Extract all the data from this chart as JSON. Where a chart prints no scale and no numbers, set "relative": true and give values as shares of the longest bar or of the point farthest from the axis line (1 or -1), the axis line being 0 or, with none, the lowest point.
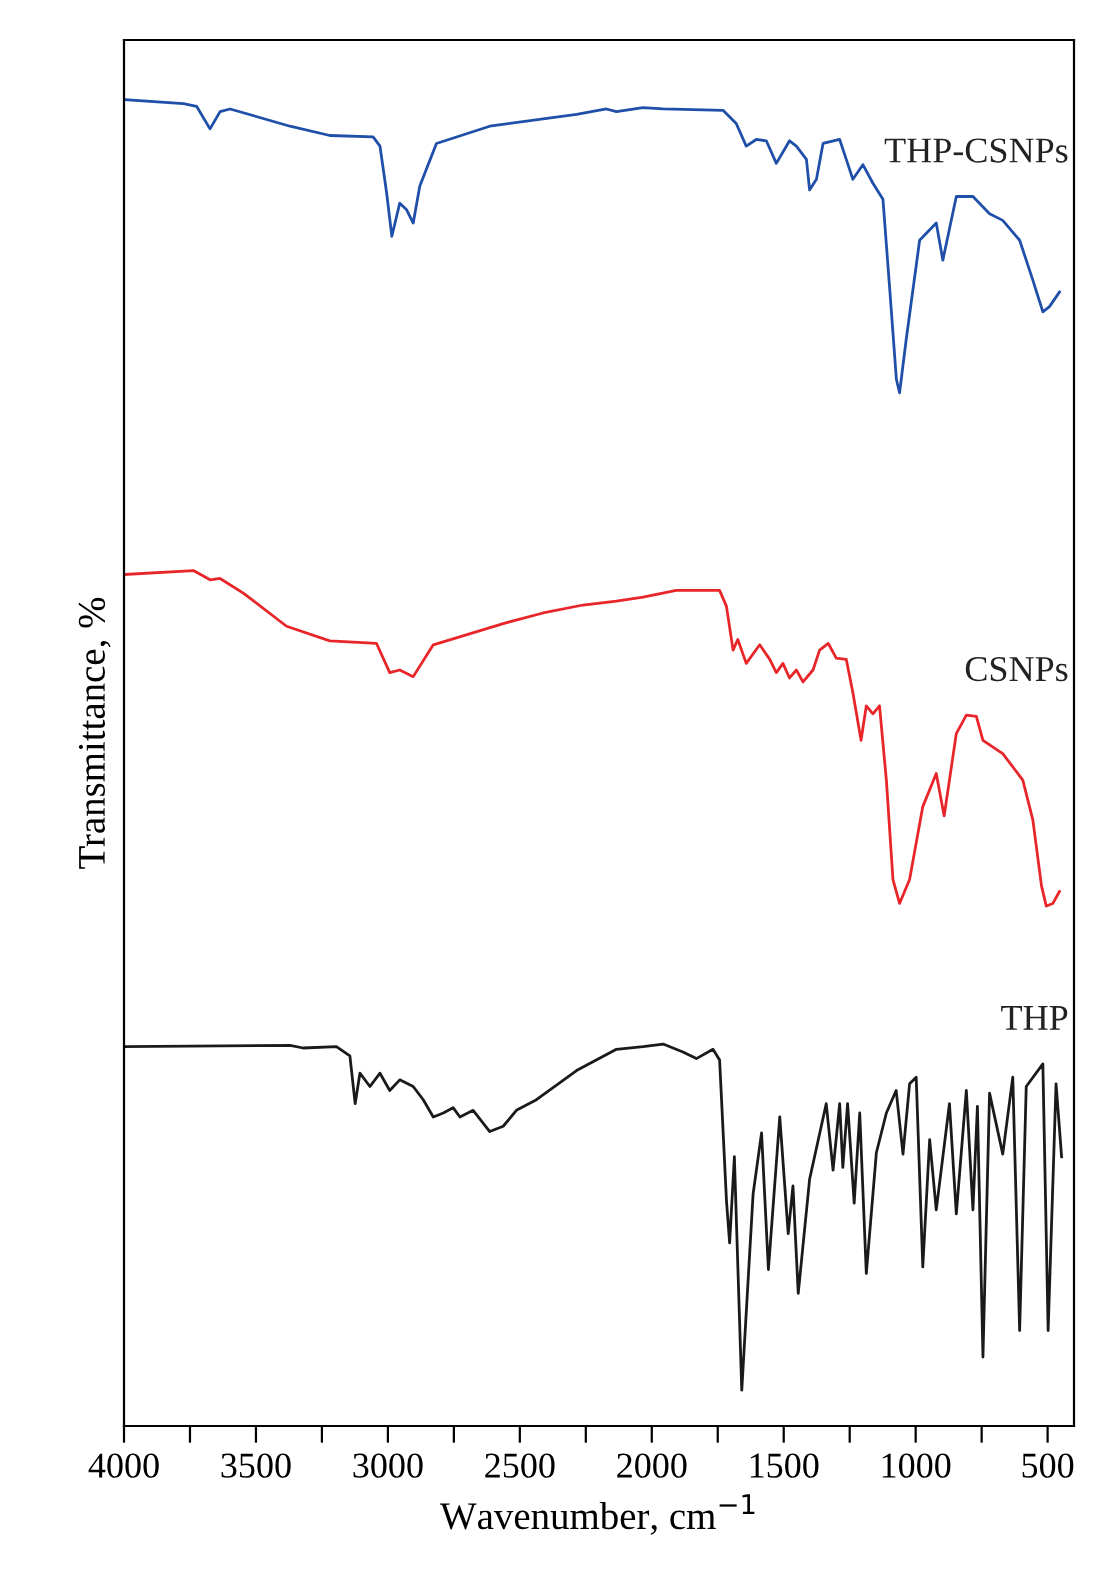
{
  "chart_data": {
    "type": "line",
    "relative": true,
    "xlabel": "Wavenumber, cm$^{−1}$",
    "ylabel": "Transmittance, %",
    "xlim": [
      4000,
      400
    ],
    "xticks": [
      4000,
      {
        "value": 3750,
        "label": null
      },
      3500,
      {
        "value": 3250,
        "label": null
      },
      3000,
      {
        "value": 2750,
        "label": null
      },
      2500,
      {
        "value": 2250,
        "label": null
      },
      2000,
      {
        "value": 1750,
        "label": null
      },
      1500,
      {
        "value": 1250,
        "label": null
      },
      1000,
      {
        "value": 750,
        "label": null
      },
      500
    ],
    "grid": false,
    "legend": false,
    "marker": "none",
    "line_style": "solid",
    "series": [
      {
        "name": "THP-CSNPs",
        "color": "#1f4fa8",
        "x": [
          3997,
          3775,
          3725,
          3674,
          3636,
          3598,
          3371,
          3220,
          3056,
          3030,
          3005,
          2985,
          2955,
          2929,
          2904,
          2879,
          2816,
          2614,
          2285,
          2172,
          2134,
          2033,
          1957,
          1730,
          1680,
          1642,
          1604,
          1566,
          1528,
          1478,
          1452,
          1414,
          1402,
          1376,
          1351,
          1288,
          1263,
          1238,
          1200,
          1162,
          1124,
          1099,
          1073,
          1061,
          1036,
          985,
          922,
          897,
          846,
          783,
          720,
          670,
          606,
          556,
          518,
          493,
          455
        ],
        "values": [
          1,
          0.997,
          0.995,
          0.978,
          0.991,
          0.993,
          0.98,
          0.973,
          0.972,
          0.965,
          0.93,
          0.897,
          0.922,
          0.917,
          0.907,
          0.935,
          0.967,
          0.98,
          0.989,
          0.993,
          0.991,
          0.994,
          0.993,
          0.992,
          0.982,
          0.965,
          0.97,
          0.969,
          0.952,
          0.969,
          0.965,
          0.955,
          0.932,
          0.94,
          0.967,
          0.97,
          0.955,
          0.94,
          0.951,
          0.937,
          0.925,
          0.859,
          0.789,
          0.779,
          0.819,
          0.894,
          0.907,
          0.879,
          0.927,
          0.927,
          0.914,
          0.909,
          0.894,
          0.864,
          0.84,
          0.844,
          0.855
        ]
      },
      {
        "name": "CSNPs",
        "color": "#e8262a",
        "x": [
          3997,
          3737,
          3674,
          3636,
          3548,
          3384,
          3220,
          3043,
          2993,
          2955,
          2904,
          2828,
          2563,
          2412,
          2260,
          2134,
          2033,
          1907,
          1743,
          1717,
          1692,
          1674,
          1642,
          1591,
          1553,
          1528,
          1503,
          1478,
          1452,
          1427,
          1389,
          1364,
          1331,
          1301,
          1263,
          1238,
          1207,
          1187,
          1162,
          1137,
          1111,
          1086,
          1061,
          1023,
          973,
          922,
          892,
          846,
          808,
          770,
          745,
          670,
          594,
          556,
          523,
          505,
          480,
          455
        ],
        "values": [
          0.642,
          0.645,
          0.638,
          0.639,
          0.628,
          0.603,
          0.592,
          0.59,
          0.568,
          0.57,
          0.565,
          0.589,
          0.605,
          0.613,
          0.619,
          0.622,
          0.625,
          0.63,
          0.63,
          0.618,
          0.585,
          0.593,
          0.575,
          0.589,
          0.578,
          0.568,
          0.575,
          0.564,
          0.57,
          0.561,
          0.57,
          0.585,
          0.59,
          0.579,
          0.578,
          0.553,
          0.517,
          0.543,
          0.537,
          0.543,
          0.487,
          0.412,
          0.394,
          0.412,
          0.467,
          0.492,
          0.46,
          0.522,
          0.536,
          0.535,
          0.517,
          0.507,
          0.487,
          0.457,
          0.407,
          0.392,
          0.394,
          0.403
        ]
      },
      {
        "name": "THP",
        "color": "#1a1a1a",
        "x": [
          3997,
          3371,
          3321,
          3195,
          3144,
          3124,
          3106,
          3068,
          3030,
          2993,
          2955,
          2904,
          2866,
          2828,
          2790,
          2753,
          2727,
          2677,
          2614,
          2563,
          2513,
          2437,
          2285,
          2134,
          2033,
          1957,
          1882,
          1831,
          1768,
          1743,
          1717,
          1705,
          1687,
          1659,
          1616,
          1584,
          1558,
          1515,
          1483,
          1465,
          1445,
          1402,
          1339,
          1313,
          1288,
          1276,
          1258,
          1233,
          1212,
          1187,
          1149,
          1111,
          1074,
          1048,
          1023,
          998,
          973,
          947,
          922,
          872,
          846,
          808,
          783,
          766,
          745,
          720,
          670,
          632,
          606,
          581,
          518,
          498,
          468,
          447
        ],
        "values": [
          0.286,
          0.287,
          0.285,
          0.286,
          0.279,
          0.243,
          0.266,
          0.256,
          0.266,
          0.253,
          0.261,
          0.256,
          0.246,
          0.233,
          0.236,
          0.24,
          0.233,
          0.238,
          0.222,
          0.226,
          0.238,
          0.246,
          0.268,
          0.284,
          0.286,
          0.288,
          0.282,
          0.277,
          0.284,
          0.276,
          0.17,
          0.138,
          0.203,
          0.027,
          0.175,
          0.221,
          0.118,
          0.233,
          0.145,
          0.181,
          0.1,
          0.186,
          0.243,
          0.193,
          0.243,
          0.195,
          0.243,
          0.168,
          0.236,
          0.115,
          0.206,
          0.236,
          0.253,
          0.205,
          0.258,
          0.263,
          0.12,
          0.216,
          0.163,
          0.243,
          0.16,
          0.253,
          0.163,
          0.241,
          0.052,
          0.251,
          0.205,
          0.263,
          0.072,
          0.256,
          0.273,
          0.072,
          0.258,
          0.203
        ]
      }
    ]
  }
}
